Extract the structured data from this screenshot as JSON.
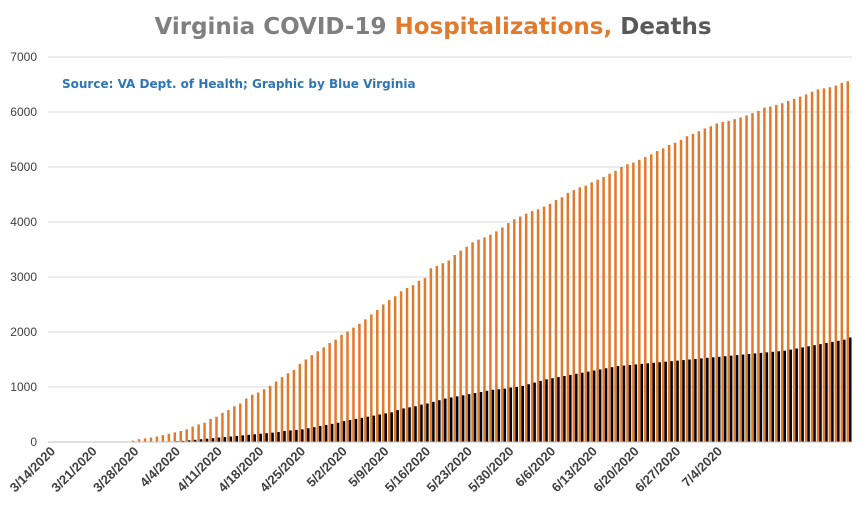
{
  "colors": {
    "title_main": "#7f7f7f",
    "hospitalizations": "#e07b2e",
    "deaths": "#000000",
    "source_text": "#2e75b6",
    "grid": "#d9d9d9"
  },
  "chart_data": {
    "type": "bar",
    "title_parts": [
      {
        "text": "Virginia COVID-19 ",
        "color": "#7f7f7f"
      },
      {
        "text": "Hospitalizations, ",
        "color": "#e07b2e"
      },
      {
        "text": "Deaths",
        "color": "#595959"
      }
    ],
    "annotation": "Source: VA Dept. of Health; Graphic by Blue Virginia",
    "start_date": "3/14/2020",
    "ylim": [
      0,
      7000
    ],
    "yticks": [
      "0",
      "1000",
      "2000",
      "3000",
      "4000",
      "5000",
      "6000",
      "7000"
    ],
    "xtick_labels": [
      "3/14/2020",
      "3/21/2020",
      "3/28/2020",
      "4/4/2020",
      "4/11/2020",
      "4/18/2020",
      "4/25/2020",
      "5/2/2020",
      "5/9/2020",
      "5/16/2020",
      "5/23/2020",
      "5/30/2020",
      "6/6/2020",
      "6/13/2020",
      "6/20/2020",
      "6/27/2020",
      "7/4/2020"
    ],
    "grid": true,
    "legend": "none",
    "series": [
      {
        "values": [
          0,
          0,
          0,
          0,
          0,
          0,
          0,
          0,
          0,
          0,
          0,
          0,
          0,
          0,
          25,
          50,
          65,
          80,
          100,
          125,
          150,
          175,
          200,
          230,
          280,
          320,
          350,
          420,
          460,
          530,
          580,
          650,
          700,
          790,
          860,
          900,
          960,
          1020,
          1100,
          1180,
          1250,
          1310,
          1420,
          1500,
          1580,
          1650,
          1720,
          1800,
          1860,
          1950,
          2010,
          2080,
          2150,
          2230,
          2320,
          2400,
          2500,
          2580,
          2650,
          2740,
          2800,
          2850,
          2930,
          2980,
          3160,
          3200,
          3250,
          3300,
          3400,
          3480,
          3550,
          3630,
          3680,
          3720,
          3770,
          3830,
          3900,
          3980,
          4050,
          4100,
          4150,
          4200,
          4230,
          4280,
          4330,
          4400,
          4450,
          4530,
          4580,
          4630,
          4660,
          4720,
          4770,
          4820,
          4880,
          4930,
          5000,
          5050,
          5080,
          5130,
          5180,
          5230,
          5290,
          5340,
          5400,
          5440,
          5490,
          5560,
          5600,
          5650,
          5700,
          5740,
          5790,
          5820,
          5840,
          5870,
          5900,
          5940,
          5980,
          6020,
          6080,
          6100,
          6130,
          6160,
          6200,
          6240,
          6280,
          6320,
          6370,
          6410,
          6430,
          6450,
          6480,
          6530,
          6560
        ]
      },
      {
        "values": [
          0,
          0,
          0,
          0,
          0,
          0,
          0,
          0,
          0,
          0,
          0,
          0,
          0,
          0,
          0,
          0,
          0,
          0,
          0,
          0,
          10,
          15,
          20,
          30,
          40,
          50,
          60,
          70,
          80,
          90,
          100,
          110,
          120,
          130,
          140,
          150,
          160,
          170,
          180,
          200,
          210,
          220,
          230,
          250,
          270,
          290,
          310,
          330,
          350,
          380,
          400,
          420,
          440,
          460,
          480,
          500,
          520,
          540,
          580,
          610,
          630,
          650,
          680,
          700,
          730,
          760,
          790,
          810,
          830,
          850,
          870,
          890,
          910,
          930,
          950,
          960,
          970,
          990,
          1000,
          1020,
          1050,
          1080,
          1110,
          1140,
          1160,
          1180,
          1200,
          1220,
          1240,
          1260,
          1280,
          1300,
          1320,
          1340,
          1360,
          1380,
          1390,
          1400,
          1410,
          1420,
          1430,
          1440,
          1450,
          1460,
          1470,
          1480,
          1490,
          1500,
          1510,
          1520,
          1530,
          1540,
          1550,
          1560,
          1570,
          1580,
          1590,
          1600,
          1610,
          1620,
          1630,
          1640,
          1650,
          1660,
          1680,
          1700,
          1720,
          1740,
          1760,
          1780,
          1800,
          1820,
          1840,
          1860,
          1900
        ]
      }
    ]
  }
}
